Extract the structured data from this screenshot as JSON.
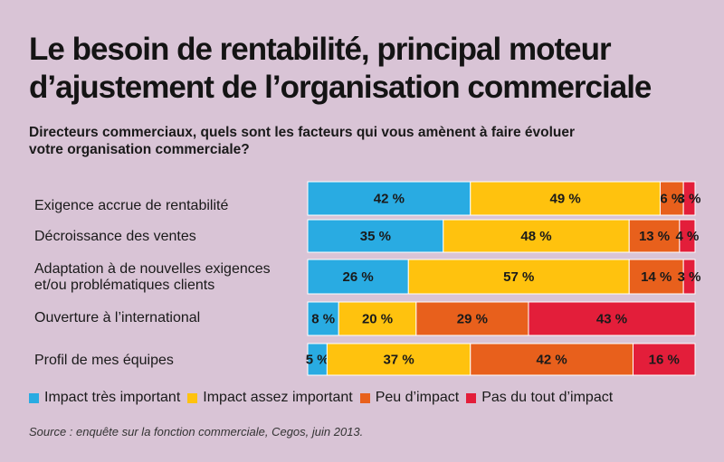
{
  "header": {
    "title_line1": "Le besoin de rentabilité, principal moteur",
    "title_line2": "d’ajustement de l’organisation commerciale",
    "subtitle_line1": "Directeurs commerciaux, quels sont les facteurs qui vous amènent à faire évoluer",
    "subtitle_line2": "votre organisation commerciale?"
  },
  "colors": {
    "impact_tres_important": "#29abe2",
    "impact_assez_important": "#ffc20e",
    "peu_impact": "#e8601c",
    "pas_du_tout": "#e31e3a"
  },
  "chart_data": {
    "type": "bar",
    "orientation": "horizontal",
    "stacked": true,
    "unit": "%",
    "xlim": [
      0,
      100
    ],
    "grid": false,
    "legend_position": "bottom",
    "categories": [
      [
        "Exigence accrue de rentabilité"
      ],
      [
        "Décroissance des ventes"
      ],
      [
        "Adaptation à de nouvelles exigences",
        "et/ou problématiques clients"
      ],
      [
        "Ouverture à l’international"
      ],
      [
        "Profil de mes équipes"
      ]
    ],
    "series": [
      {
        "name": "Impact très important",
        "values": [
          42,
          35,
          26,
          8,
          5
        ]
      },
      {
        "name": "Impact assez important",
        "values": [
          49,
          48,
          57,
          20,
          37
        ]
      },
      {
        "name": "Peu d’impact",
        "values": [
          6,
          13,
          14,
          29,
          42
        ]
      },
      {
        "name": "Pas du tout d’impact",
        "values": [
          3,
          4,
          3,
          43,
          16
        ]
      }
    ],
    "value_labels": [
      [
        "42 %",
        "49 %",
        "6 %",
        "3 %"
      ],
      [
        "35 %",
        "48 %",
        "13 %",
        "4 %"
      ],
      [
        "26 %",
        "57 %",
        "14 %",
        "3 %"
      ],
      [
        "8 %",
        "20 %",
        "29 %",
        "43 %"
      ],
      [
        "5 %",
        "37 %",
        "42 %",
        "16 %"
      ]
    ]
  },
  "source": "Source : enquête sur la fonction commerciale, Cegos, juin 2013."
}
